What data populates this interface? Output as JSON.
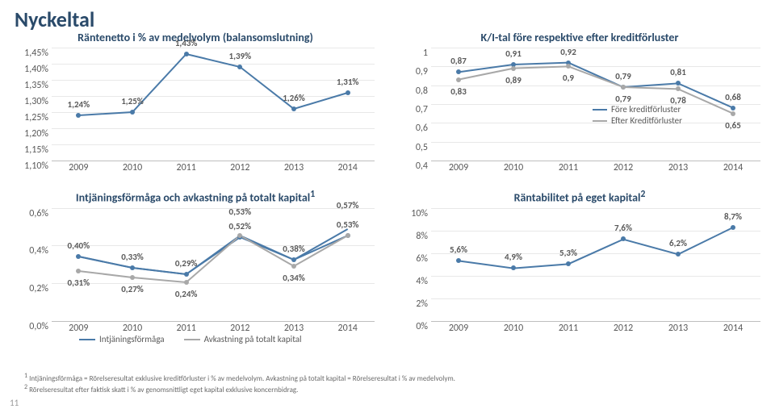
{
  "page": {
    "title": "Nyckeltal",
    "page_number": "11",
    "background_color": "#ffffff"
  },
  "grid_color": "#e8e8e8",
  "axis_color": "#bfbfbf",
  "text_color": "#595959",
  "title_color": "#2a4a6a",
  "chart_tl": {
    "title": "Räntenetto i % av medelvolym (balansomslutning)",
    "years": [
      "2009",
      "2010",
      "2011",
      "2012",
      "2013",
      "2014"
    ],
    "ylim": [
      1.1,
      1.45
    ],
    "yticks": [
      "1,10%",
      "1,15%",
      "1,20%",
      "1,25%",
      "1,30%",
      "1,35%",
      "1,40%",
      "1,45%"
    ],
    "series": [
      {
        "name": "nim",
        "color": "#4a7aa8",
        "values": [
          1.24,
          1.25,
          1.43,
          1.39,
          1.26,
          1.31
        ],
        "labels": [
          "1,24%",
          "1,25%",
          "1,43%",
          "1,39%",
          "1,26%",
          "1,31%"
        ]
      }
    ]
  },
  "chart_tr": {
    "title": "K/I-tal före respektive efter kreditförluster",
    "years": [
      "2009",
      "2010",
      "2011",
      "2012",
      "2013",
      "2014"
    ],
    "ylim": [
      0.4,
      1.0
    ],
    "yticks": [
      "0,4",
      "0,5",
      "0,6",
      "0,7",
      "0,8",
      "0,9",
      "1"
    ],
    "legend": {
      "fore": "Före kreditförluster",
      "efter": "Efter Kreditförluster"
    },
    "series": [
      {
        "name": "fore",
        "color": "#4a7aa8",
        "values": [
          0.87,
          0.91,
          0.92,
          0.79,
          0.81,
          0.68
        ],
        "labels": [
          "0,87",
          "0,91",
          "0,92",
          "0,79",
          "0,81",
          "0,68"
        ],
        "label_dy": -14
      },
      {
        "name": "efter",
        "color": "#a8a8a8",
        "values": [
          0.83,
          0.89,
          0.9,
          0.79,
          0.78,
          0.65
        ],
        "labels": [
          "0,83",
          "0,89",
          "0,9",
          "0,79",
          "0,78",
          "0,65"
        ],
        "label_dy": 14
      }
    ]
  },
  "chart_bl": {
    "title": "Intjäningsförmåga och avkastning på totalt kapital",
    "title_sup": "1",
    "years": [
      "2009",
      "2010",
      "2011",
      "2012",
      "2013",
      "2014"
    ],
    "ylim": [
      0.0,
      0.7
    ],
    "yticks": [
      "0,0%",
      "0,2%",
      "0,4%",
      "0,6%"
    ],
    "legend": {
      "a": "Intjäningsförmåga",
      "b": "Avkastning på totalt kapital"
    },
    "series": [
      {
        "name": "intj",
        "color": "#4a7aa8",
        "values": [
          0.4,
          0.33,
          0.29,
          0.52,
          0.38,
          0.53
        ],
        "labels": [
          "0,40%",
          "0,33%",
          "0,29%",
          "0,52%",
          "0,38%",
          "0,53%"
        ],
        "label_dy": -14
      },
      {
        "name": "intj2",
        "color": "#4a7aa8",
        "no_markers": true,
        "values": [
          0.4,
          0.33,
          0.29,
          0.53,
          0.38,
          0.57
        ],
        "labels": [
          "",
          "",
          "",
          "0,53%",
          "",
          "0,57%"
        ],
        "label_dy": -30
      },
      {
        "name": "avk",
        "color": "#a8a8a8",
        "values": [
          0.31,
          0.27,
          0.24,
          0.53,
          0.34,
          0.53
        ],
        "labels": [
          "0,31%",
          "0,27%",
          "0,24%",
          "",
          "0,34%",
          ""
        ],
        "label_dy": 14
      }
    ]
  },
  "chart_br": {
    "title": "Räntabilitet på eget kapital",
    "title_sup": "2",
    "years": [
      "2009",
      "2010",
      "2011",
      "2012",
      "2013",
      "2014"
    ],
    "ylim": [
      0,
      10.5
    ],
    "yticks": [
      "0%",
      "2%",
      "4%",
      "6%",
      "8%",
      "10%"
    ],
    "series": [
      {
        "name": "roe",
        "color": "#4a7aa8",
        "values": [
          5.6,
          4.9,
          5.3,
          7.6,
          6.2,
          8.7
        ],
        "labels": [
          "5,6%",
          "4,9%",
          "5,3%",
          "7,6%",
          "6,2%",
          "8,7%"
        ]
      }
    ]
  },
  "footnotes": {
    "f1": "Intjäningsförmåga = Rörelseresultat exklusive kreditförluster i % av medelvolym. Avkastning på totalt kapital = Rörelseresultat i % av medelvolym.",
    "f2": "Rörelseresultat efter faktisk skatt i % av genomsnittligt eget kapital exklusive koncernbidrag."
  }
}
